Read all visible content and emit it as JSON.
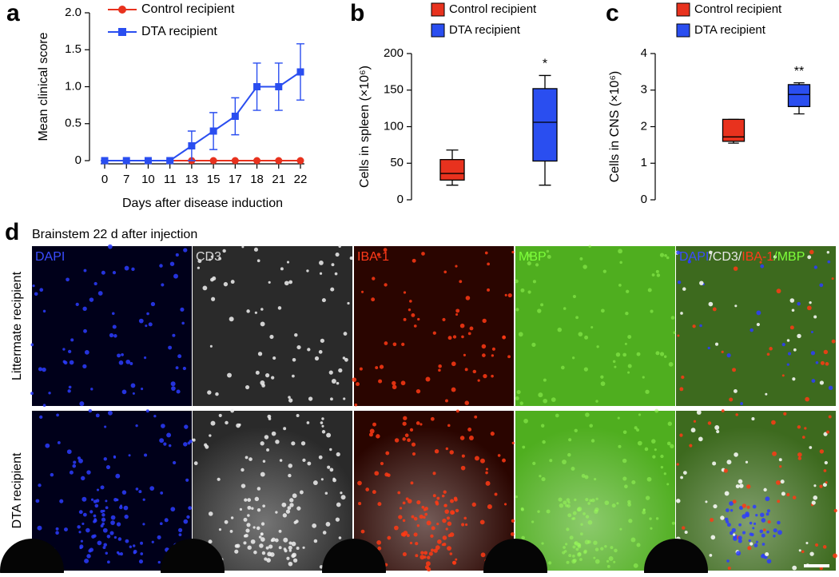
{
  "chart_data": [
    {
      "type": "line",
      "panel_label": "a",
      "x_label": "Days after disease induction",
      "y_label": "Mean clinical score",
      "categories": [
        "0",
        "7",
        "10",
        "11",
        "13",
        "15",
        "17",
        "18",
        "21",
        "22"
      ],
      "series": [
        {
          "name": "Control recipient",
          "color": "#e8321e",
          "marker": "circle",
          "values": [
            0,
            0,
            0,
            0,
            0,
            0,
            0,
            0,
            0,
            0
          ]
        },
        {
          "name": "DTA recipient",
          "color": "#2a4ef0",
          "marker": "square",
          "values": [
            0,
            0,
            0,
            0,
            0.2,
            0.4,
            0.6,
            1.0,
            1.0,
            1.2
          ],
          "errors": [
            0,
            0,
            0,
            0,
            0.2,
            0.25,
            0.25,
            0.32,
            0.32,
            0.38
          ]
        }
      ],
      "ylim": [
        0,
        2
      ],
      "yticks": [
        0,
        0.5,
        {
          "value": 1,
          "label": "1.0"
        },
        1.5,
        {
          "value": 2,
          "label": "2.0"
        }
      ]
    },
    {
      "type": "box",
      "panel_label": "b",
      "y_label": "Cells in spleen (×10⁶)",
      "series": [
        {
          "name": "Control recipient",
          "color": "#e8321e",
          "min": 20,
          "q1": 27,
          "median": 36,
          "q3": 55,
          "max": 68
        },
        {
          "name": "DTA recipient",
          "color": "#2a4ef0",
          "min": 20,
          "q1": 53,
          "median": 106,
          "q3": 152,
          "max": 170,
          "annotation": "*"
        }
      ],
      "ylim": [
        0,
        200
      ],
      "yticks": [
        0,
        50,
        100,
        150,
        200
      ]
    },
    {
      "type": "box",
      "panel_label": "c",
      "y_label": "Cells in CNS (×10⁶)",
      "series": [
        {
          "name": "Control recipient",
          "color": "#e8321e",
          "min": 1.55,
          "q1": 1.6,
          "median": 1.72,
          "q3": 2.2,
          "max": 2.2
        },
        {
          "name": "DTA recipient",
          "color": "#2a4ef0",
          "min": 2.35,
          "q1": 2.55,
          "median": 2.88,
          "q3": 3.15,
          "max": 3.2,
          "annotation": "**"
        }
      ],
      "ylim": [
        0,
        4
      ],
      "yticks": [
        0,
        1,
        2,
        3,
        4
      ]
    }
  ],
  "panel_d": {
    "panel_label": "d",
    "title": "Brainstem 22 d after injection",
    "rows": [
      "Littermate recipient",
      "DTA recipient"
    ],
    "columns": [
      [
        {
          "text": "DAPI",
          "color": "#3a4cff"
        }
      ],
      [
        {
          "text": "CD3",
          "color": "#d8d8d8"
        }
      ],
      [
        {
          "text": "IBA-1",
          "color": "#ff3a1a"
        }
      ],
      [
        {
          "text": "MBP",
          "color": "#7dff3a"
        }
      ],
      [
        {
          "text": "DAPI",
          "color": "#3a4cff"
        },
        {
          "text": "/CD3/",
          "color": "#e8e8e8"
        },
        {
          "text": "IBA-1",
          "color": "#ff3a1a"
        },
        {
          "text": "/MBP",
          "color": "#7dff3a"
        }
      ]
    ]
  }
}
